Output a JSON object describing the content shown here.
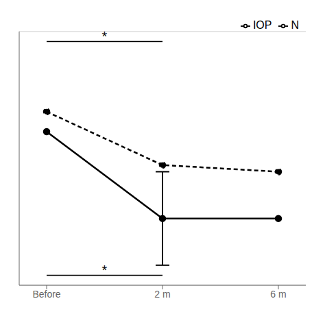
{
  "chart_data": {
    "type": "line",
    "categories": [
      "Before",
      "2 m",
      "6 m"
    ],
    "series": [
      {
        "name": "IOP",
        "color": "#000000",
        "line_style": "solid",
        "marker": "circle",
        "values": [
          27,
          14,
          14
        ],
        "error": [
          0,
          7,
          0
        ]
      },
      {
        "name": "N",
        "color": "#000000",
        "line_style": "dashed",
        "marker": "circle",
        "values": [
          30,
          22,
          21
        ]
      }
    ],
    "ylim": [
      4,
      42
    ],
    "yticks": [
      8,
      13,
      18,
      23,
      28,
      33,
      38
    ],
    "grid": true,
    "legend": "upper right",
    "tick_labels": "x",
    "annotations": [
      {
        "text": "*",
        "y": 40.0,
        "line_y": 40.5,
        "x": [
          "Before",
          "2 m"
        ]
      },
      {
        "text": "*",
        "y": 5.0,
        "line_y": 5.5,
        "x": [
          "Before",
          "2 m"
        ]
      }
    ]
  }
}
